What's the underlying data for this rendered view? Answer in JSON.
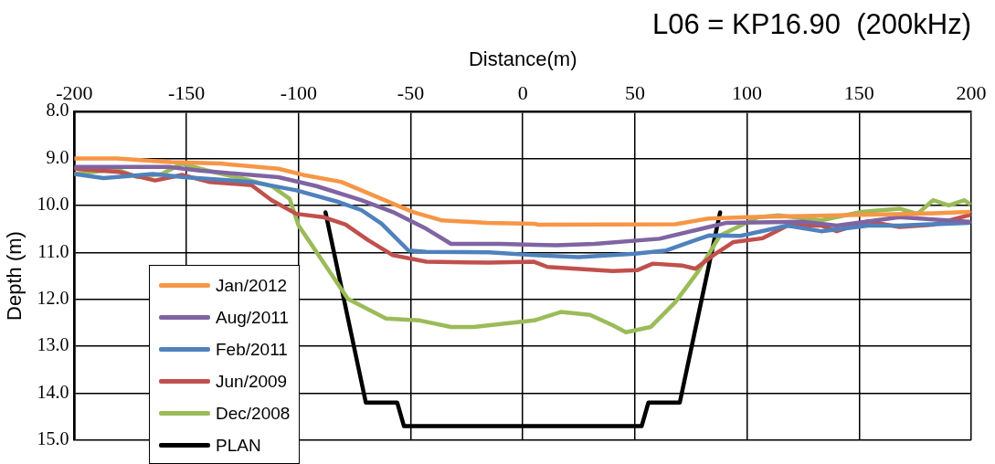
{
  "chart_data": {
    "type": "line",
    "title": "L06 = KP16.90  (200kHz)",
    "xlabel": "Distance(m)",
    "ylabel": "Depth (m)",
    "xlim": [
      -200,
      200
    ],
    "xticks": [
      -200,
      -150,
      -100,
      -50,
      0,
      50,
      100,
      150,
      200
    ],
    "ylim": [
      15,
      8
    ],
    "yticks": [
      {
        "value": 8,
        "label": "8.0"
      },
      {
        "value": 9,
        "label": "9.0"
      },
      {
        "value": 10,
        "label": "10.0"
      },
      {
        "value": 11,
        "label": "11.0"
      },
      {
        "value": 12,
        "label": "12.0"
      },
      {
        "value": 13,
        "label": "13.0"
      },
      {
        "value": 14,
        "label": "14.0"
      },
      {
        "value": 15,
        "label": "15.0"
      }
    ],
    "grid": true,
    "legend": "bottom left",
    "marker": "none",
    "line_style": "solid",
    "series": [
      {
        "name": "Jan/2012",
        "color": "#f79646",
        "x": [
          -200,
          -181,
          -157,
          -135,
          -109,
          -98,
          -81,
          -72,
          -58,
          -49,
          -36,
          -16,
          5,
          7,
          68,
          83,
          100,
          140,
          176,
          199
        ],
        "values": [
          9.0,
          9.0,
          9.08,
          9.11,
          9.22,
          9.35,
          9.5,
          9.68,
          9.96,
          10.14,
          10.32,
          10.37,
          10.39,
          10.41,
          10.4,
          10.28,
          10.25,
          10.21,
          10.18,
          10.14
        ]
      },
      {
        "name": "Aug/2011",
        "color": "#8064a2",
        "x": [
          -200,
          -158,
          -144,
          -109,
          -92,
          -72,
          -58,
          -43,
          -32,
          -10,
          5,
          15,
          32,
          61,
          83,
          91,
          125,
          140,
          168,
          183,
          199
        ],
        "values": [
          9.18,
          9.18,
          9.26,
          9.4,
          9.59,
          9.89,
          10.14,
          10.5,
          10.82,
          10.82,
          10.84,
          10.85,
          10.82,
          10.71,
          10.46,
          10.37,
          10.35,
          10.43,
          10.25,
          10.3,
          10.35
        ]
      },
      {
        "name": "Feb/2011",
        "color": "#4f81bd",
        "x": [
          -200,
          -187,
          -165,
          -151,
          -121,
          -101,
          -82,
          -72,
          -63,
          -51,
          -43,
          -15,
          5,
          25,
          50,
          64,
          83,
          97,
          118,
          133,
          154,
          168,
          199
        ],
        "values": [
          9.33,
          9.42,
          9.33,
          9.4,
          9.5,
          9.68,
          9.93,
          10.1,
          10.39,
          10.96,
          10.99,
          11.0,
          11.06,
          11.1,
          11.03,
          10.96,
          10.64,
          10.65,
          10.43,
          10.55,
          10.43,
          10.43,
          10.37
        ]
      },
      {
        "name": "Jun/2009",
        "color": "#c0504d",
        "x": [
          -200,
          -180,
          -164,
          -152,
          -140,
          -121,
          -112,
          -101,
          -89,
          -79,
          -69,
          -58,
          -43,
          -15,
          5,
          11,
          40,
          51,
          58,
          71,
          77,
          85,
          94,
          107,
          118,
          133,
          140,
          154,
          168,
          183,
          199
        ],
        "values": [
          9.22,
          9.29,
          9.47,
          9.35,
          9.5,
          9.57,
          9.89,
          10.18,
          10.25,
          10.41,
          10.74,
          11.06,
          11.2,
          11.22,
          11.2,
          11.31,
          11.4,
          11.38,
          11.24,
          11.28,
          11.35,
          11.06,
          10.78,
          10.7,
          10.43,
          10.43,
          10.55,
          10.34,
          10.46,
          10.41,
          10.21
        ]
      },
      {
        "name": "Dec/2008",
        "color": "#9bbb59",
        "x": [
          -200,
          -181,
          -172,
          -161,
          -152,
          -138,
          -125,
          -112,
          -104,
          -100,
          -96,
          -86,
          -78,
          -61,
          -46,
          -32,
          -22,
          5,
          17,
          30,
          40,
          46,
          57,
          68,
          78,
          88,
          105,
          114,
          133,
          151,
          168,
          176,
          183,
          190,
          197,
          199
        ],
        "values": [
          9.33,
          9.23,
          9.4,
          9.33,
          9.11,
          9.29,
          9.43,
          9.59,
          9.86,
          10.43,
          10.71,
          11.42,
          11.99,
          12.41,
          12.45,
          12.59,
          12.59,
          12.45,
          12.27,
          12.33,
          12.55,
          12.7,
          12.59,
          12.06,
          11.42,
          10.64,
          10.25,
          10.21,
          10.32,
          10.14,
          10.07,
          10.18,
          9.89,
          10.0,
          9.89,
          9.96
        ]
      },
      {
        "name": "PLAN",
        "color": "#000000",
        "x": [
          -88,
          -70,
          -56,
          -53,
          53,
          56,
          70,
          88
        ],
        "values": [
          10.15,
          14.2,
          14.2,
          14.7,
          14.7,
          14.2,
          14.2,
          10.15
        ]
      }
    ]
  }
}
